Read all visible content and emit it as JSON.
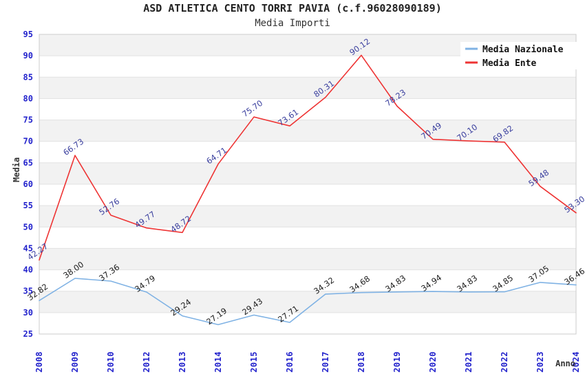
{
  "chart_data": {
    "type": "line",
    "title": "ASD ATLETICA CENTO TORRI PAVIA (c.f.96028090189)",
    "subtitle": "Media Importi",
    "xlabel": "Anno",
    "ylabel": "Media",
    "ylim": [
      25,
      95
    ],
    "ytick_step": 5,
    "yticks": [
      25,
      30,
      35,
      40,
      45,
      50,
      55,
      60,
      65,
      70,
      75,
      80,
      85,
      90,
      95
    ],
    "grid": "horizontal-bands",
    "legend_position": "top-right",
    "categories": [
      "2008",
      "2009",
      "2010",
      "2012",
      "2013",
      "2014",
      "2015",
      "2016",
      "2017",
      "2018",
      "2019",
      "2020",
      "2021",
      "2022",
      "2023",
      "2024"
    ],
    "series": [
      {
        "name": "Media Nazionale",
        "color": "#7fb2e4",
        "label_color": "#1c1c1c",
        "values": [
          32.82,
          38.0,
          37.36,
          34.79,
          29.24,
          27.19,
          29.43,
          27.71,
          34.32,
          34.68,
          34.83,
          34.94,
          34.83,
          34.85,
          37.05,
          36.46
        ]
      },
      {
        "name": "Media Ente",
        "color": "#ee3333",
        "label_color": "#3a3f9e",
        "values": [
          42.27,
          66.73,
          52.76,
          49.77,
          48.72,
          64.71,
          75.7,
          73.61,
          80.31,
          90.12,
          78.23,
          70.49,
          70.1,
          69.82,
          59.48,
          53.3
        ]
      }
    ],
    "colors": {
      "background": "#ffffff",
      "band": "#f2f2f2",
      "grid": "#e1e1e1",
      "border": "#cccccc",
      "tick_label": "#2222cc",
      "title": "#222222",
      "subtitle": "#333333",
      "axis_title": "#333333",
      "legend_text": "#111111",
      "legend_background": "#ffffff"
    }
  }
}
